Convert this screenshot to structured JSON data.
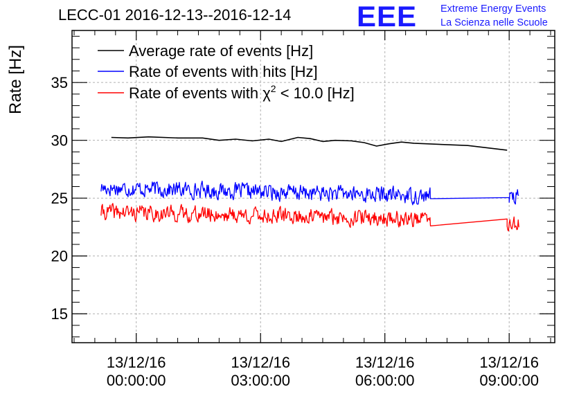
{
  "header": {
    "title": "LECC-01 2016-12-13--2016-12-14",
    "logo_text": "EEE",
    "logo_line1": "Extreme Energy Events",
    "logo_line2": "La Scienza nelle Scuole"
  },
  "colors": {
    "average": "#000000",
    "hits": "#0000ff",
    "chi2": "#ff0000",
    "grid": "#b0b0b0",
    "brand": "#1a1aff"
  },
  "chart_data": {
    "type": "line",
    "title": "LECC-01 2016-12-13--2016-12-14",
    "xlabel": "",
    "ylabel": "Rate [Hz]",
    "xlim_hours": [
      -1.55,
      10.1
    ],
    "ylim": [
      12.5,
      39.5
    ],
    "yticks": [
      15,
      20,
      25,
      30,
      35
    ],
    "xticks": [
      {
        "hours": 0,
        "date": "13/12/16",
        "time": "00:00:00"
      },
      {
        "hours": 3,
        "date": "13/12/16",
        "time": "03:00:00"
      },
      {
        "hours": 6,
        "date": "13/12/16",
        "time": "06:00:00"
      },
      {
        "hours": 9,
        "date": "13/12/16",
        "time": "09:00:00"
      }
    ],
    "grid": true,
    "legend_position": "top-left",
    "legend": [
      {
        "key": "average",
        "label": "Average rate of events [Hz]"
      },
      {
        "key": "hits",
        "label": "Rate of events with hits [Hz]"
      },
      {
        "key": "chi2",
        "label_prefix": "Rate of events with ",
        "label_symbol": "χ",
        "label_sup": "2",
        "label_suffix": " < 10.0 [Hz]"
      }
    ],
    "series": [
      {
        "name": "Average rate of events [Hz]",
        "key": "average",
        "x_hours": [
          -0.6,
          -0.2,
          0.3,
          1.0,
          1.6,
          2.0,
          2.4,
          2.8,
          3.2,
          3.5,
          3.9,
          4.2,
          4.5,
          4.8,
          5.2,
          5.5,
          5.8,
          6.1,
          6.4,
          6.7,
          7.0,
          8.0,
          8.95
        ],
        "values": [
          30.25,
          30.2,
          30.3,
          30.2,
          30.2,
          30.0,
          30.1,
          29.95,
          30.1,
          29.9,
          30.25,
          30.15,
          29.9,
          30.0,
          29.95,
          29.8,
          29.5,
          29.7,
          29.85,
          29.75,
          29.7,
          29.55,
          29.15
        ]
      },
      {
        "name": "Rate of events with hits [Hz]",
        "key": "hits",
        "segments": [
          {
            "start_hours": -0.85,
            "end_hours": 7.1,
            "level": 25.9,
            "drift_per_hour": -0.09,
            "noise_amplitude": 0.95,
            "seed": 17
          },
          {
            "start_hours": 7.1,
            "end_hours": 9.0,
            "level_start": 24.95,
            "level_end": 25.05,
            "noise_amplitude": 0
          },
          {
            "start_hours": 9.0,
            "end_hours": 9.25,
            "level": 25.0,
            "drift_per_hour": 0,
            "noise_amplitude": 1.1,
            "seed": 29
          }
        ]
      },
      {
        "name": "Rate of events with χ2 < 10.0 [Hz]",
        "key": "chi2",
        "segments": [
          {
            "start_hours": -0.85,
            "end_hours": 7.1,
            "level": 23.8,
            "drift_per_hour": -0.08,
            "noise_amplitude": 0.95,
            "seed": 41
          },
          {
            "start_hours": 7.1,
            "end_hours": 8.95,
            "level_start": 22.6,
            "level_end": 23.2,
            "noise_amplitude": 0
          },
          {
            "start_hours": 8.95,
            "end_hours": 9.25,
            "level": 22.9,
            "drift_per_hour": 0,
            "noise_amplitude": 1.0,
            "seed": 53
          }
        ]
      }
    ]
  }
}
